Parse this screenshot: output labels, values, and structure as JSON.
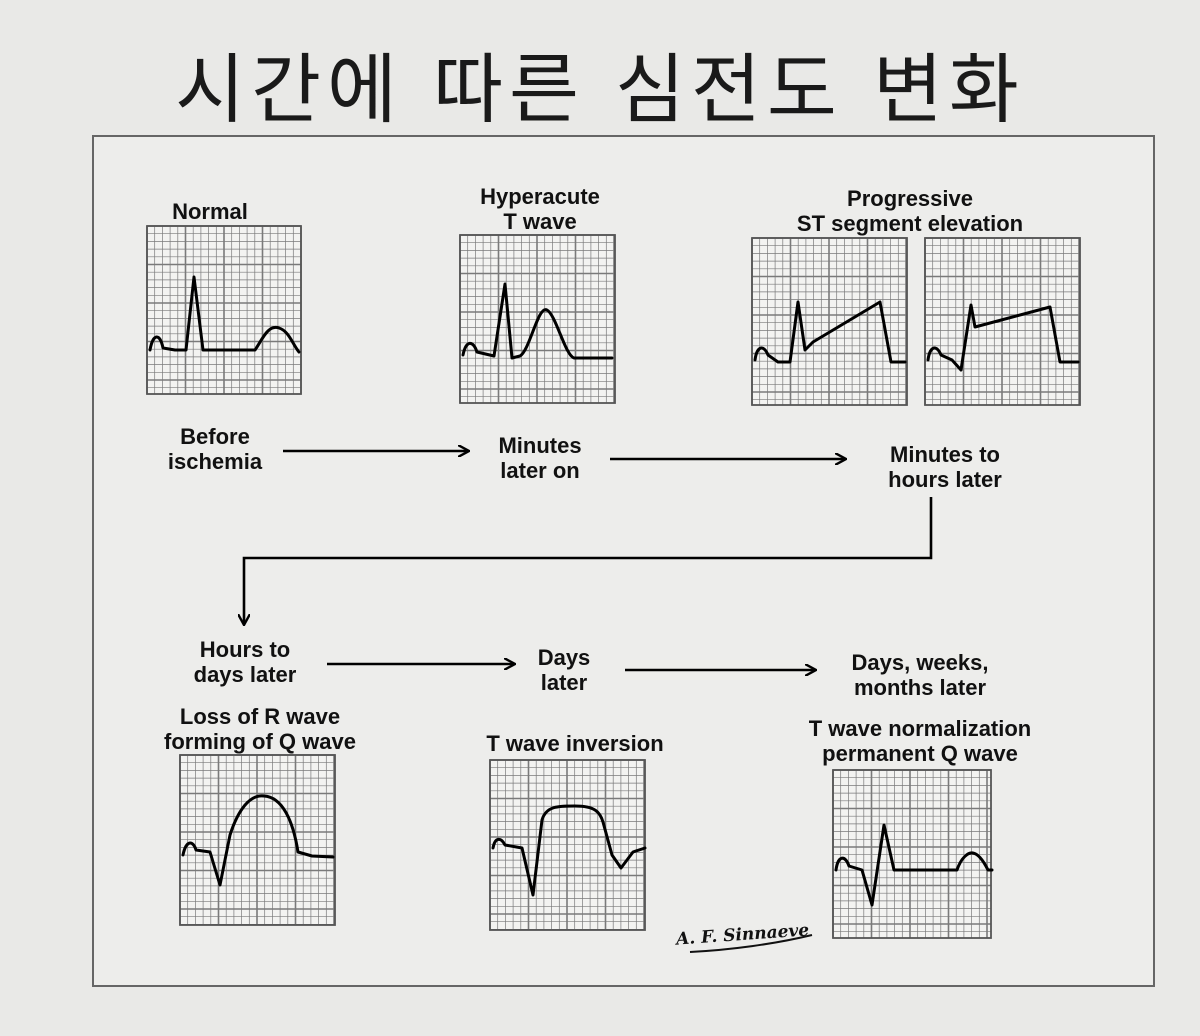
{
  "title": "시간에 따른 심전도 변화",
  "stages": [
    {
      "id": "normal",
      "label": [
        "Normal"
      ],
      "time": [
        "Before",
        "ischemia"
      ]
    },
    {
      "id": "hyperacute",
      "label": [
        "Hyperacute",
        "T wave"
      ],
      "time": [
        "Minutes",
        "later on"
      ]
    },
    {
      "id": "st-elevation",
      "label": [
        "Progressive",
        "ST segment elevation"
      ],
      "time": [
        "Minutes to",
        "hours later"
      ]
    },
    {
      "id": "q-wave",
      "label": [
        "Loss of R wave",
        "forming of Q wave"
      ],
      "time": [
        "Hours to",
        "days later"
      ]
    },
    {
      "id": "t-inversion",
      "label": [
        "T wave inversion"
      ],
      "time": [
        "Days",
        "later"
      ]
    },
    {
      "id": "normalization",
      "label": [
        "T wave normalization",
        "permanent Q wave"
      ],
      "time": [
        "Days, weeks,",
        "months later"
      ]
    }
  ],
  "signature": "A. F. Sinnaeve",
  "colors": {
    "grid": "#7a7a7a",
    "trace": "#000000",
    "arrow": "#000000"
  }
}
